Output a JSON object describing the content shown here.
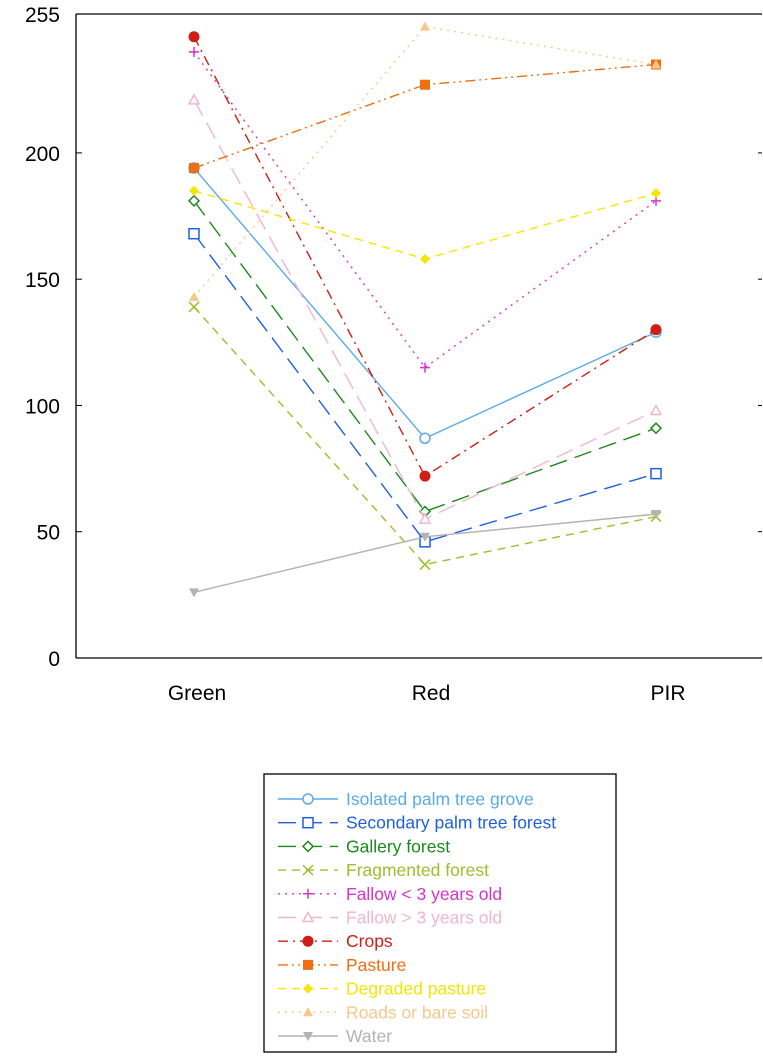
{
  "chart_data": {
    "type": "line",
    "title": "",
    "xlabel": "",
    "ylabel": "",
    "categories": [
      "Green",
      "Red",
      "PIR"
    ],
    "ylim": [
      0,
      255
    ],
    "yticks": [
      0,
      50,
      100,
      150,
      200,
      255
    ],
    "grid": false,
    "legend_position": "bottom-center",
    "series": [
      {
        "name": "Isolated palm tree grove",
        "values": [
          194,
          87,
          129
        ],
        "color": "#5aabea",
        "marker": "circle-open",
        "dash": "solid"
      },
      {
        "name": "Secondary palm tree forest",
        "values": [
          168,
          46,
          73
        ],
        "color": "#1f5fe0",
        "marker": "square-open",
        "dash": "longdash"
      },
      {
        "name": "Gallery forest",
        "values": [
          181,
          58,
          91
        ],
        "color": "#1c8a1c",
        "marker": "diamond-open",
        "dash": "longdash"
      },
      {
        "name": "Fragmented forest",
        "values": [
          139,
          37,
          56
        ],
        "color": "#9cbf2c",
        "marker": "x",
        "dash": "dash"
      },
      {
        "name": "Fallow < 3 years old",
        "values": [
          240,
          115,
          181
        ],
        "color": "#d535c9",
        "marker": "plus",
        "dash": "dot"
      },
      {
        "name": "Fallow > 3 years old",
        "values": [
          221,
          55,
          98
        ],
        "color": "#f0b6cf",
        "marker": "triangle-open",
        "dash": "longdash"
      },
      {
        "name": "Crops",
        "values": [
          246,
          72,
          130
        ],
        "color": "#d01e14",
        "marker": "circle-filled",
        "dash": "dashdot"
      },
      {
        "name": "Pasture",
        "values": [
          194,
          227,
          235
        ],
        "color": "#ef6e12",
        "marker": "square-filled",
        "dash": "dashdotdot"
      },
      {
        "name": "Degraded pasture",
        "values": [
          185,
          158,
          184
        ],
        "color": "#f3e600",
        "marker": "diamond-filled",
        "dash": "dash"
      },
      {
        "name": "Roads or bare soil",
        "values": [
          143,
          250,
          235
        ],
        "color": "#f5c98a",
        "marker": "triangle-filled",
        "dash": "dot"
      },
      {
        "name": "Water",
        "values": [
          26,
          48,
          57
        ],
        "color": "#b3b3b3",
        "marker": "triangle-down-filled",
        "dash": "solid"
      }
    ]
  }
}
